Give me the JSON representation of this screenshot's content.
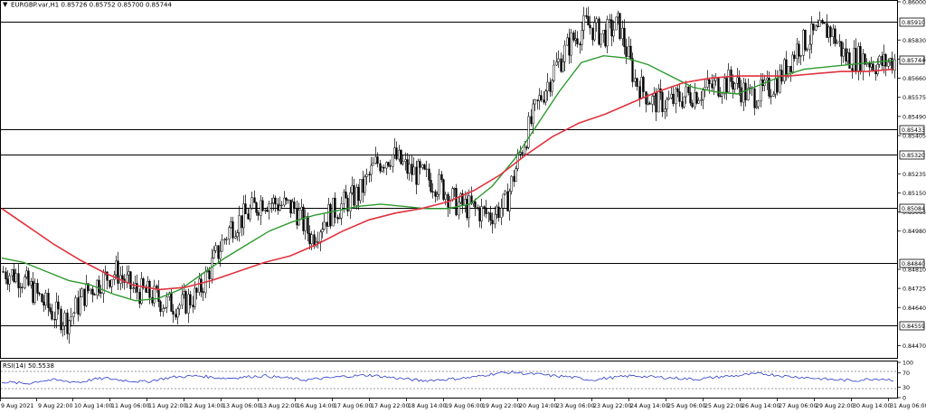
{
  "header": {
    "symbol_line": "EURGBP.var,H1  0.85726 0.85752 0.85700 0.85744"
  },
  "rsi_panel": {
    "label": "RSI(14) 50.5538",
    "levels": [
      "100",
      "70",
      "30",
      "0"
    ]
  },
  "chart_data": [
    {
      "type": "candlestick",
      "title": "EURGBP.var,H1",
      "ohlc_last": {
        "open": 0.85726,
        "high": 0.85752,
        "low": 0.857,
        "close": 0.85744
      },
      "ylim": [
        0.8442,
        0.86
      ],
      "price_ticks": [
        "0.86000",
        "0.85830",
        "0.85745",
        "0.85660",
        "0.85575",
        "0.85490",
        "0.85405",
        "0.85235",
        "0.85150",
        "0.85065",
        "0.84980",
        "0.84810",
        "0.84725",
        "0.84640",
        "0.84470"
      ],
      "horizontal_levels": [
        "0.85910",
        "0.85433",
        "0.85320",
        "0.85084",
        "0.84840",
        "0.84559"
      ],
      "current_price": "0.85744",
      "x_tick_labels": [
        "9 Aug 2021",
        "9 Aug 22:00",
        "10 Aug 14:00",
        "11 Aug 06:00",
        "11 Aug 22:00",
        "12 Aug 14:00",
        "13 Aug 06:00",
        "13 Aug 22:00",
        "16 Aug 14:00",
        "17 Aug 06:00",
        "17 Aug 22:00",
        "18 Aug 14:00",
        "19 Aug 06:00",
        "19 Aug 22:00",
        "20 Aug 14:00",
        "23 Aug 06:00",
        "23 Aug 22:00",
        "24 Aug 14:00",
        "25 Aug 06:00",
        "25 Aug 22:00",
        "26 Aug 14:00",
        "27 Aug 06:00",
        "29 Aug 22:00",
        "30 Aug 14:00",
        "31 Aug 06:00"
      ],
      "close_trend": [
        0.848,
        0.8478,
        0.847,
        0.8462,
        0.8458,
        0.847,
        0.8476,
        0.848,
        0.8472,
        0.847,
        0.8466,
        0.8465,
        0.847,
        0.8485,
        0.85,
        0.8505,
        0.8512,
        0.851,
        0.8508,
        0.8495,
        0.8505,
        0.851,
        0.8515,
        0.8528,
        0.8532,
        0.8525,
        0.8522,
        0.8518,
        0.851,
        0.8508,
        0.8505,
        0.851,
        0.8535,
        0.8555,
        0.857,
        0.8582,
        0.859,
        0.8585,
        0.859,
        0.8565,
        0.8556,
        0.8555,
        0.8558,
        0.856,
        0.8563,
        0.8565,
        0.8558,
        0.856,
        0.8567,
        0.858,
        0.8585,
        0.8588,
        0.8575,
        0.8575,
        0.8572,
        0.8574
      ],
      "series": [
        {
          "name": "",
          "color": "#2e9a2e",
          "values": [
            0.8486,
            0.8484,
            0.848,
            0.8476,
            0.8474,
            0.847,
            0.8467,
            0.8468,
            0.8472,
            0.8479,
            0.8486,
            0.8492,
            0.8498,
            0.8502,
            0.8505,
            0.8507,
            0.8509,
            0.851,
            0.8509,
            0.8508,
            0.8508,
            0.851,
            0.8518,
            0.853,
            0.8545,
            0.856,
            0.8573,
            0.8576,
            0.8575,
            0.8572,
            0.8567,
            0.8562,
            0.856,
            0.8559,
            0.8563,
            0.8567,
            0.857,
            0.8571,
            0.8572,
            0.8573,
            0.8574
          ]
        },
        {
          "name": "",
          "color": "#e0333f",
          "values": [
            0.8508,
            0.85,
            0.8492,
            0.8485,
            0.8479,
            0.8474,
            0.8472,
            0.8473,
            0.8476,
            0.848,
            0.8484,
            0.8487,
            0.8492,
            0.8498,
            0.8503,
            0.8506,
            0.8508,
            0.8511,
            0.8516,
            0.8523,
            0.8532,
            0.854,
            0.8546,
            0.855,
            0.8555,
            0.856,
            0.8564,
            0.8566,
            0.8567,
            0.8567,
            0.8567,
            0.8568,
            0.8569,
            0.8569,
            0.857
          ]
        }
      ]
    },
    {
      "type": "line",
      "title": "RSI(14) 50.5538",
      "ylim": [
        0,
        100
      ],
      "levels": [
        70,
        30
      ],
      "series": [
        {
          "name": "",
          "color": "#2b3bc9",
          "values": [
            45,
            42,
            40,
            48,
            50,
            46,
            44,
            52,
            55,
            50,
            47,
            45,
            52,
            58,
            60,
            62,
            58,
            55,
            57,
            60,
            62,
            58,
            55,
            50,
            53,
            56,
            60,
            62,
            64,
            60,
            56,
            52,
            48,
            50,
            52,
            55,
            58,
            65,
            70,
            72,
            68,
            66,
            62,
            60,
            55,
            50,
            55,
            58,
            62,
            60,
            58,
            56,
            54,
            52,
            56,
            60,
            62,
            66,
            68,
            64,
            60,
            58,
            55,
            52,
            50,
            48,
            52,
            54,
            50
          ]
        }
      ]
    }
  ]
}
